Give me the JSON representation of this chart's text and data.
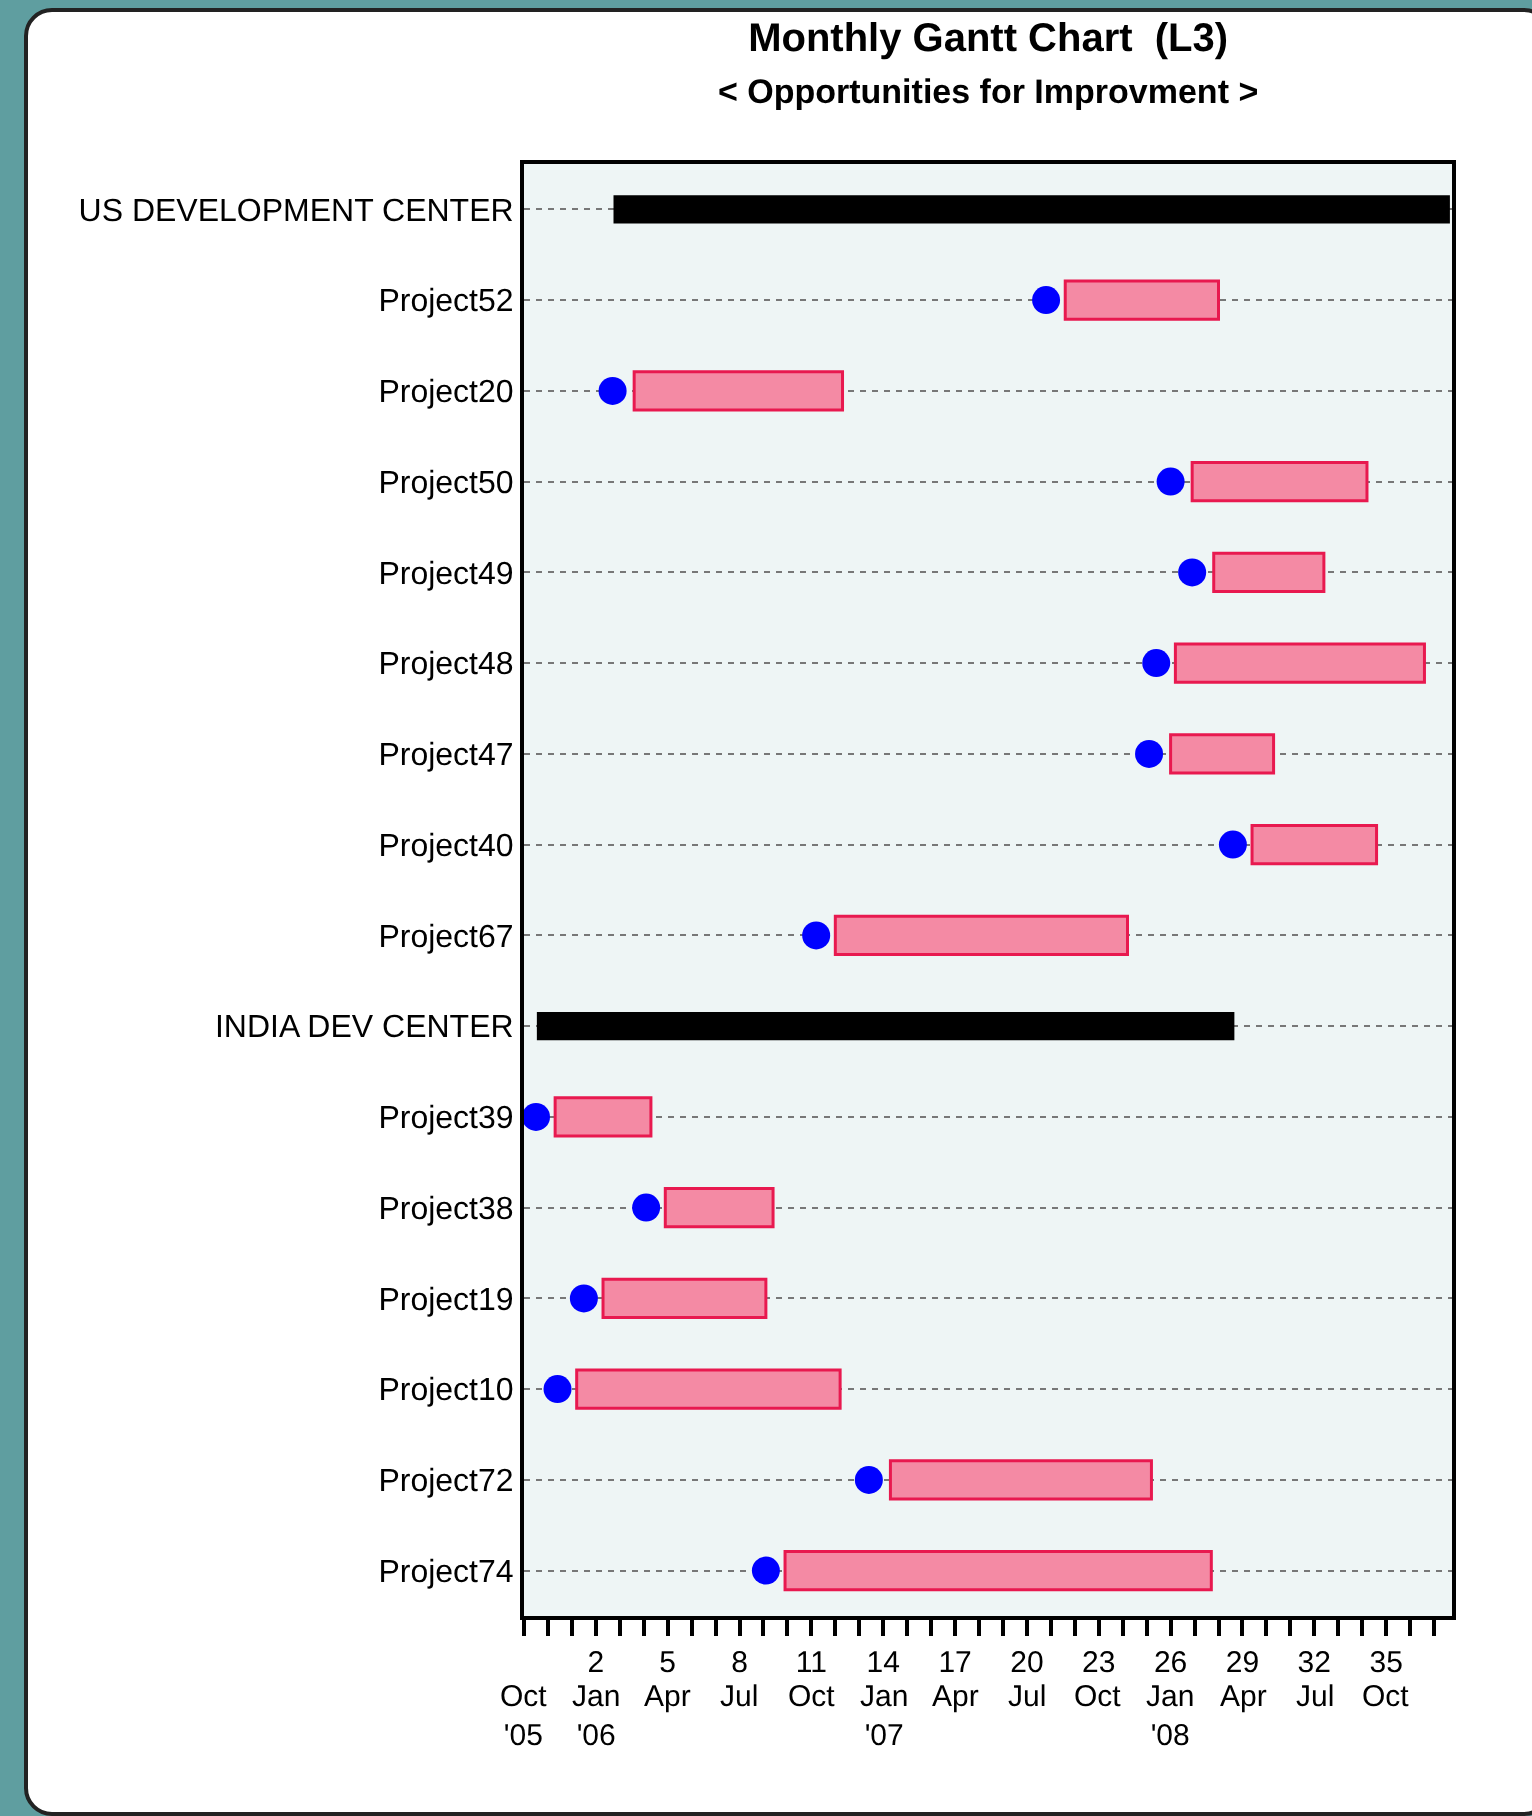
{
  "chart_data": {
    "type": "bar",
    "orientation": "horizontal",
    "title": "Monthly Gantt Chart  (L3)",
    "subtitle": "< Opportunities for Improvment >",
    "categories": [
      "US DEVELOPMENT CENTER",
      "Project52",
      "Project20",
      "Project50",
      "Project49",
      "Project48",
      "Project47",
      "Project40",
      "Project67",
      "INDIA DEV CENTER",
      "Project39",
      "Project38",
      "Project19",
      "Project10",
      "Project72",
      "Project74"
    ],
    "series": [
      {
        "type": "bar",
        "color": "#000000",
        "base": [
          2.8,
          null,
          null,
          null,
          null,
          null,
          null,
          null,
          null,
          -0.4,
          null,
          null,
          null,
          null,
          null,
          null
        ],
        "values": [
          34.8,
          null,
          null,
          null,
          null,
          null,
          null,
          null,
          null,
          29.0,
          null,
          null,
          null,
          null,
          null,
          null
        ]
      },
      {
        "type": "bar",
        "color": "#f48aa4",
        "base": [
          null,
          21.6,
          3.6,
          26.9,
          27.8,
          26.2,
          26.0,
          29.4,
          12.0,
          null,
          0.3,
          4.9,
          2.3,
          1.2,
          14.3,
          9.9
        ],
        "values": [
          null,
          6.4,
          8.7,
          7.3,
          4.6,
          10.4,
          4.3,
          5.2,
          12.2,
          null,
          4.0,
          4.5,
          6.8,
          11.0,
          10.9,
          17.8
        ]
      },
      {
        "type": "scatter",
        "color": "#0000ff",
        "marker": "circle",
        "values": [
          null,
          20.8,
          2.7,
          26.0,
          26.9,
          25.4,
          25.1,
          28.6,
          11.2,
          null,
          -0.5,
          4.1,
          1.5,
          0.4,
          13.4,
          9.1
        ]
      }
    ],
    "xlim": [
      -1,
      37.75
    ],
    "xticks": [
      {
        "value": -1,
        "label": null
      },
      {
        "value": 0,
        "label": null
      },
      {
        "value": 1,
        "label": null
      },
      2,
      {
        "value": 3,
        "label": null
      },
      {
        "value": 4,
        "label": null
      },
      5,
      {
        "value": 6,
        "label": null
      },
      {
        "value": 7,
        "label": null
      },
      8,
      {
        "value": 9,
        "label": null
      },
      {
        "value": 10,
        "label": null
      },
      11,
      {
        "value": 12,
        "label": null
      },
      {
        "value": 13,
        "label": null
      },
      14,
      {
        "value": 15,
        "label": null
      },
      {
        "value": 16,
        "label": null
      },
      17,
      {
        "value": 18,
        "label": null
      },
      {
        "value": 19,
        "label": null
      },
      20,
      {
        "value": 21,
        "label": null
      },
      {
        "value": 22,
        "label": null
      },
      23,
      {
        "value": 24,
        "label": null
      },
      {
        "value": 25,
        "label": null
      },
      26,
      {
        "value": 27,
        "label": null
      },
      {
        "value": 28,
        "label": null
      },
      29,
      {
        "value": 30,
        "label": null
      },
      {
        "value": 31,
        "label": null
      },
      32,
      {
        "value": 33,
        "label": null
      },
      {
        "value": 34,
        "label": null
      },
      35,
      {
        "value": 36,
        "label": null
      },
      {
        "value": 37,
        "label": null
      }
    ],
    "annotations": [
      "Oct\n'05",
      "Jan\n'06",
      "Apr",
      "Jul",
      "Oct",
      "Jan\n'07",
      "Apr",
      "Jul",
      "Oct",
      "Jan\n'08",
      "Apr",
      "Jul",
      "Oct"
    ],
    "grid": "y"
  }
}
